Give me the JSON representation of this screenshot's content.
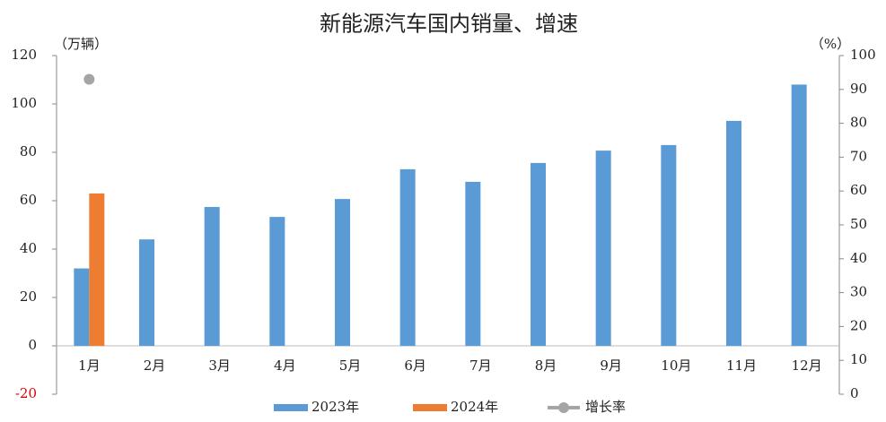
{
  "chart_data": {
    "type": "bar",
    "title": "新能源汽车国内销量、增速",
    "y_label": "（万辆）",
    "y2_label": "（%）",
    "categories": [
      "1月",
      "2月",
      "3月",
      "4月",
      "5月",
      "6月",
      "7月",
      "8月",
      "9月",
      "10月",
      "11月",
      "12月"
    ],
    "series": [
      {
        "name": "2023年",
        "color": "#5b9bd5",
        "values": [
          32,
          44,
          57.4,
          53.3,
          60.7,
          73,
          67.8,
          75.6,
          80.7,
          83,
          93,
          108
        ]
      },
      {
        "name": "2024年",
        "color": "#ed7d31",
        "values": [
          63,
          null,
          null,
          null,
          null,
          null,
          null,
          null,
          null,
          null,
          null,
          null
        ]
      },
      {
        "name": "增长率",
        "color": "#a5a5a5",
        "axis": "y2",
        "type": "line",
        "values": [
          93,
          null,
          null,
          null,
          null,
          null,
          null,
          null,
          null,
          null,
          null,
          null
        ]
      }
    ],
    "ylim": [
      -20,
      120
    ],
    "yticks": [
      -20,
      0,
      20,
      40,
      60,
      80,
      100,
      120
    ],
    "y2lim": [
      0,
      100
    ],
    "y2ticks": [
      0,
      10,
      20,
      30,
      40,
      50,
      60,
      70,
      80,
      90,
      100
    ],
    "grid": false,
    "legend": "bottom"
  }
}
